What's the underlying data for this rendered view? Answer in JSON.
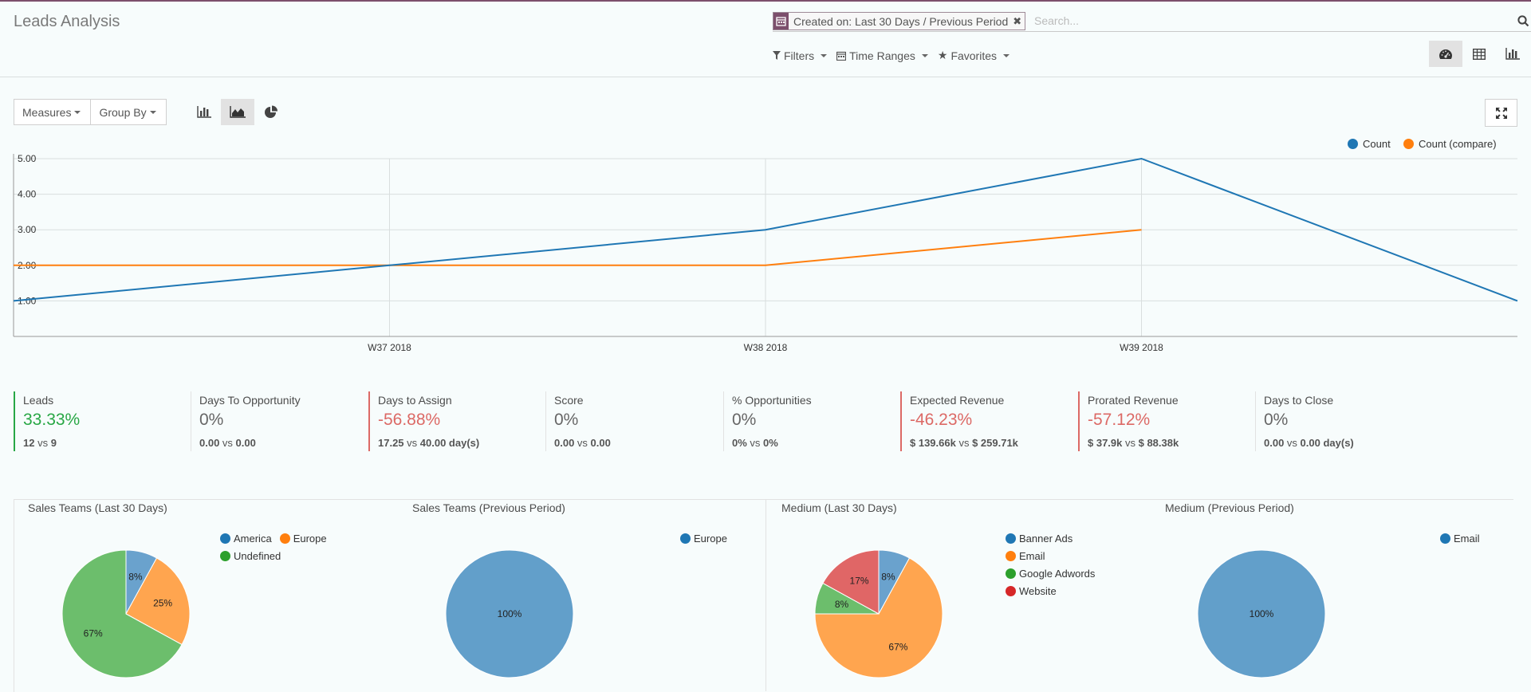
{
  "header": {
    "title": "Leads Analysis"
  },
  "search": {
    "facet_label": "Created on: Last 30 Days / Previous Period",
    "placeholder": "Search..."
  },
  "filters": {
    "filters_label": "Filters",
    "time_ranges_label": "Time Ranges",
    "favorites_label": "Favorites"
  },
  "graph_toolbar": {
    "measures_label": "Measures",
    "group_by_label": "Group By"
  },
  "colors": {
    "blue": "#1f77b4",
    "orange": "#ff7f0e",
    "green": "#2ca02c",
    "red": "#d62728",
    "pos": "#28a745",
    "neg": "#dc6965",
    "brand": "#7c4f6c"
  },
  "chart_data": [
    {
      "type": "line",
      "x_ticks": [
        "W37 2018",
        "W38 2018",
        "W39 2018"
      ],
      "ylim": [
        0,
        5
      ],
      "y_ticks": [
        "1.00",
        "2.00",
        "3.00",
        "4.00",
        "5.00"
      ],
      "grid": true,
      "legend_position": "top-right",
      "series": [
        {
          "name": "Count",
          "color": "#1f77b4",
          "values": [
            1,
            2,
            3,
            5,
            1
          ]
        },
        {
          "name": "Count (compare)",
          "color": "#ff7f0e",
          "values": [
            2,
            2,
            2,
            3
          ]
        }
      ]
    },
    {
      "type": "pie",
      "title": "Sales Teams (Last 30 Days)",
      "legend": [
        "America",
        "Europe",
        "Undefined"
      ],
      "slices": [
        {
          "name": "America",
          "percent": 8,
          "label": "8%",
          "color": "#6aa2cd"
        },
        {
          "name": "Europe",
          "percent": 25,
          "label": "25%",
          "color": "#ffa54f"
        },
        {
          "name": "Undefined",
          "percent": 67,
          "label": "67%",
          "color": "#6cbe6c"
        }
      ]
    },
    {
      "type": "pie",
      "title": "Sales Teams (Previous Period)",
      "legend": [
        "Europe"
      ],
      "slices": [
        {
          "name": "Europe",
          "percent": 100,
          "label": "100%",
          "color": "#629fca"
        }
      ]
    },
    {
      "type": "pie",
      "title": "Medium (Last 30 Days)",
      "legend": [
        "Banner Ads",
        "Email",
        "Google Adwords",
        "Website"
      ],
      "slices": [
        {
          "name": "Banner Ads",
          "percent": 8,
          "label": "8%",
          "color": "#6aa2cd"
        },
        {
          "name": "Email",
          "percent": 67,
          "label": "67%",
          "color": "#ffa54f"
        },
        {
          "name": "Google Adwords",
          "percent": 8,
          "label": "8%",
          "color": "#6cbe6c"
        },
        {
          "name": "Website",
          "percent": 17,
          "label": "17%",
          "color": "#e06666"
        }
      ]
    },
    {
      "type": "pie",
      "title": "Medium (Previous Period)",
      "legend": [
        "Email"
      ],
      "slices": [
        {
          "name": "Email",
          "percent": 100,
          "label": "100%",
          "color": "#629fca"
        }
      ]
    }
  ],
  "kpis": [
    {
      "name": "Leads",
      "value": "33.33%",
      "trend": "pos",
      "current": "12",
      "previous": "9",
      "unit": ""
    },
    {
      "name": "Days To Opportunity",
      "value": "0%",
      "trend": "none",
      "current": "0.00",
      "previous": "0.00",
      "unit": ""
    },
    {
      "name": "Days to Assign",
      "value": "-56.88%",
      "trend": "neg",
      "current": "17.25",
      "previous": "40.00 day(s)",
      "unit": ""
    },
    {
      "name": "Score",
      "value": "0%",
      "trend": "none",
      "current": "0.00",
      "previous": "0.00",
      "unit": ""
    },
    {
      "name": "% Opportunities",
      "value": "0%",
      "trend": "none",
      "current": "0%",
      "previous": "0%",
      "unit": ""
    },
    {
      "name": "Expected Revenue",
      "value": "-46.23%",
      "trend": "neg",
      "current": "$ 139.66k",
      "previous": "$ 259.71k",
      "unit": ""
    },
    {
      "name": "Prorated Revenue",
      "value": "-57.12%",
      "trend": "neg",
      "current": "$ 37.9k",
      "previous": "$ 88.38k",
      "unit": ""
    },
    {
      "name": "Days to Close",
      "value": "0%",
      "trend": "none",
      "current": "0.00",
      "previous": "0.00 day(s)",
      "unit": ""
    }
  ],
  "vs_label": "vs"
}
